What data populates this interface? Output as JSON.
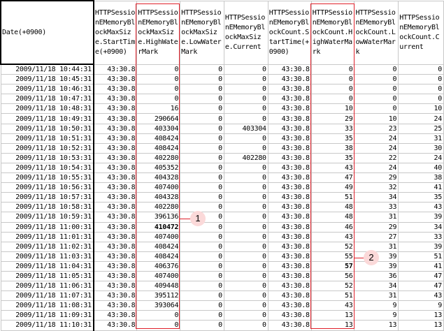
{
  "columns": [
    "Date(+0900)",
    "HTTPSessionEMemoryBlockMaxSize.StartTime(+0900)",
    "HTTPSessionEMemoryBlockMaxSize.HighWaterMark",
    "HTTPSessionEMemoryBlockMaxSize.LowWaterMark",
    "HTTPSessionEMemoryBlockMaxSize.Current",
    "HTTPSessionEMemoryBlockCount.StartTime(+0900)",
    "HTTPSessionEMemoryBlockCount.HighWaterMark",
    "HTTPSessionEMemoryBlockCount.LowWaterMark",
    "HTTPSessionEMemoryBlockCount.Current"
  ],
  "rows": [
    [
      "2009/11/18 10:44:31",
      "43:30.8",
      "0",
      "0",
      "0",
      "43:30.8",
      "0",
      "0",
      "0"
    ],
    [
      "2009/11/18 10:45:31",
      "43:30.8",
      "0",
      "0",
      "0",
      "43:30.8",
      "0",
      "0",
      "0"
    ],
    [
      "2009/11/18 10:46:31",
      "43:30.8",
      "0",
      "0",
      "0",
      "43:30.8",
      "0",
      "0",
      "0"
    ],
    [
      "2009/11/18 10:47:31",
      "43:30.8",
      "0",
      "0",
      "0",
      "43:30.8",
      "0",
      "0",
      "0"
    ],
    [
      "2009/11/18 10:48:31",
      "43:30.8",
      "16",
      "0",
      "0",
      "43:30.8",
      "10",
      "0",
      "10"
    ],
    [
      "2009/11/18 10:49:31",
      "43:30.8",
      "290664",
      "0",
      "0",
      "43:30.8",
      "29",
      "10",
      "24"
    ],
    [
      "2009/11/18 10:50:31",
      "43:30.8",
      "403304",
      "0",
      "403304",
      "43:30.8",
      "33",
      "23",
      "25"
    ],
    [
      "2009/11/18 10:51:31",
      "43:30.8",
      "408424",
      "0",
      "0",
      "43:30.8",
      "35",
      "24",
      "31"
    ],
    [
      "2009/11/18 10:52:31",
      "43:30.8",
      "408424",
      "0",
      "0",
      "43:30.8",
      "38",
      "24",
      "30"
    ],
    [
      "2009/11/18 10:53:31",
      "43:30.8",
      "402280",
      "0",
      "402280",
      "43:30.8",
      "35",
      "22",
      "24"
    ],
    [
      "2009/11/18 10:54:31",
      "43:30.8",
      "405352",
      "0",
      "0",
      "43:30.8",
      "43",
      "24",
      "40"
    ],
    [
      "2009/11/18 10:55:31",
      "43:30.8",
      "404328",
      "0",
      "0",
      "43:30.8",
      "47",
      "29",
      "38"
    ],
    [
      "2009/11/18 10:56:31",
      "43:30.8",
      "407400",
      "0",
      "0",
      "43:30.8",
      "49",
      "32",
      "41"
    ],
    [
      "2009/11/18 10:57:31",
      "43:30.8",
      "404328",
      "0",
      "0",
      "43:30.8",
      "51",
      "34",
      "35"
    ],
    [
      "2009/11/18 10:58:31",
      "43:30.8",
      "402280",
      "0",
      "0",
      "43:30.8",
      "48",
      "33",
      "43"
    ],
    [
      "2009/11/18 10:59:31",
      "43:30.8",
      "396136",
      "0",
      "0",
      "43:30.8",
      "48",
      "31",
      "39"
    ],
    [
      "2009/11/18 11:00:31",
      "43:30.8",
      "410472",
      "0",
      "0",
      "43:30.8",
      "46",
      "29",
      "34"
    ],
    [
      "2009/11/18 11:01:31",
      "43:30.8",
      "407400",
      "0",
      "0",
      "43:30.8",
      "43",
      "27",
      "33"
    ],
    [
      "2009/11/18 11:02:31",
      "43:30.8",
      "408424",
      "0",
      "0",
      "43:30.8",
      "52",
      "31",
      "39"
    ],
    [
      "2009/11/18 11:03:31",
      "43:30.8",
      "408424",
      "0",
      "0",
      "43:30.8",
      "55",
      "39",
      "51"
    ],
    [
      "2009/11/18 11:04:31",
      "43:30.8",
      "406376",
      "0",
      "0",
      "43:30.8",
      "57",
      "39",
      "41"
    ],
    [
      "2009/11/18 11:05:31",
      "43:30.8",
      "407400",
      "0",
      "0",
      "43:30.8",
      "56",
      "36",
      "47"
    ],
    [
      "2009/11/18 11:06:31",
      "43:30.8",
      "409448",
      "0",
      "0",
      "43:30.8",
      "52",
      "34",
      "47"
    ],
    [
      "2009/11/18 11:07:31",
      "43:30.8",
      "395112",
      "0",
      "0",
      "43:30.8",
      "51",
      "31",
      "43"
    ],
    [
      "2009/11/18 11:08:31",
      "43:30.8",
      "393064",
      "0",
      "0",
      "43:30.8",
      "43",
      "9",
      "9"
    ],
    [
      "2009/11/18 11:09:31",
      "43:30.8",
      "0",
      "0",
      "0",
      "43:30.8",
      "13",
      "9",
      "13"
    ],
    [
      "2009/11/18 11:10:31",
      "43:30.8",
      "0",
      "0",
      "0",
      "43:30.8",
      "13",
      "13",
      "13"
    ]
  ],
  "bold_cells": [
    [
      16,
      2
    ],
    [
      20,
      6
    ]
  ],
  "callouts": [
    "1",
    "2"
  ],
  "highlight_color": "#e0202a"
}
